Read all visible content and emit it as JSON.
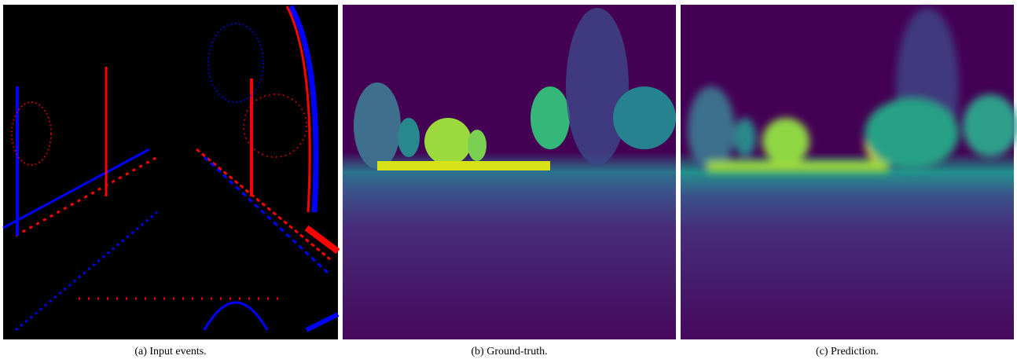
{
  "figure": {
    "subfigures": [
      {
        "caption": "(a) Input events."
      },
      {
        "caption": "(b) Ground-truth."
      },
      {
        "caption": "(c) Prediction."
      }
    ]
  }
}
